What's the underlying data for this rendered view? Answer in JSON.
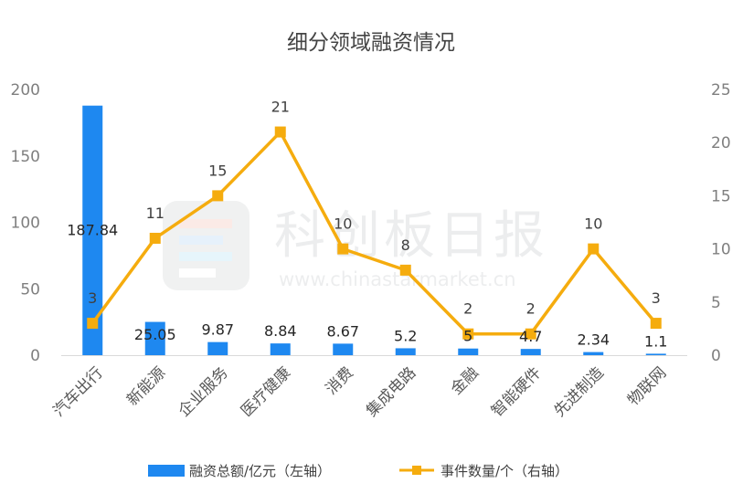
{
  "chart_data": {
    "type": "bar+line",
    "title": "细分领域融资情况",
    "categories": [
      "汽车出行",
      "新能源",
      "企业服务",
      "医疗健康",
      "消费",
      "集成电路",
      "金融",
      "智能硬件",
      "先进制造",
      "物联网"
    ],
    "series": [
      {
        "name": "融资总额/亿元（左轴）",
        "type": "bar",
        "axis": "left",
        "color": "#1e88f0",
        "values": [
          187.84,
          25.05,
          9.87,
          8.84,
          8.67,
          5.2,
          5,
          4.7,
          2.34,
          1.1
        ],
        "labels": [
          "187.84",
          "25.05",
          "9.87",
          "8.84",
          "8.67",
          "5.2",
          "5",
          "4.7",
          "2.34",
          "1.1"
        ]
      },
      {
        "name": "事件数量/个（右轴）",
        "type": "line",
        "axis": "right",
        "color": "#f5ac0e",
        "values": [
          3,
          11,
          15,
          21,
          10,
          8,
          2,
          2,
          10,
          3
        ],
        "labels": [
          "3",
          "11",
          "15",
          "21",
          "10",
          "8",
          "2",
          "2",
          "10",
          "3"
        ]
      }
    ],
    "y_left": {
      "min": 0,
      "max": 200,
      "ticks": [
        0,
        50,
        100,
        150,
        200
      ]
    },
    "y_right": {
      "min": 0,
      "max": 25,
      "ticks": [
        0,
        5,
        10,
        15,
        20,
        25
      ]
    },
    "legend_position": "bottom",
    "grid": false
  },
  "watermark": {
    "name": "科创板日报",
    "url": "www.chinastarmarket.cn"
  }
}
